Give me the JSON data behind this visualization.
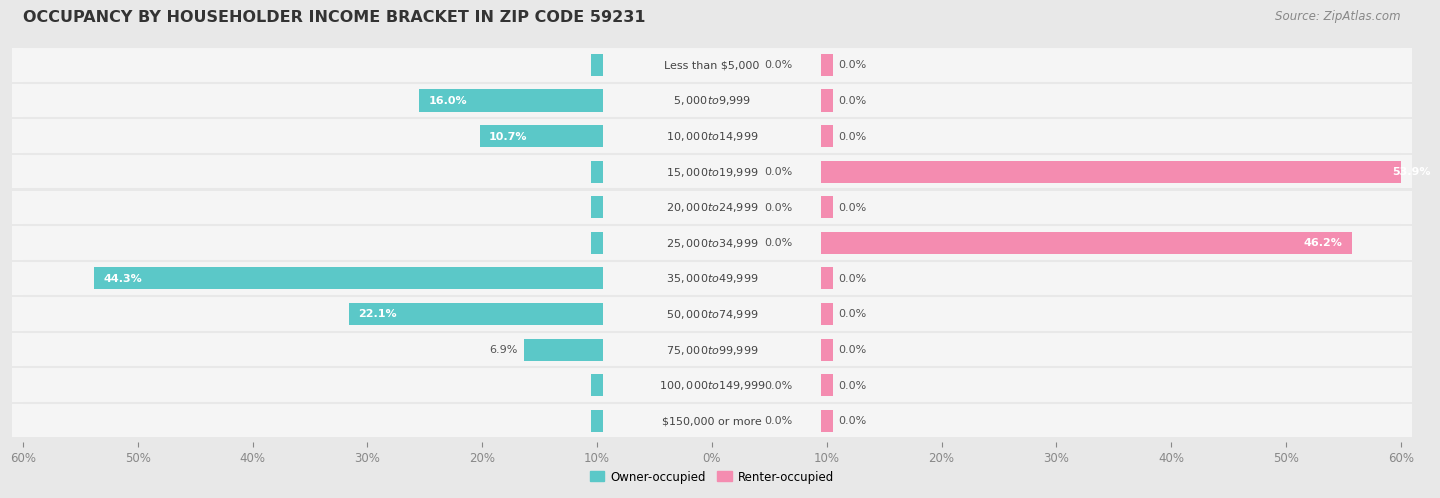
{
  "title": "OCCUPANCY BY HOUSEHOLDER INCOME BRACKET IN ZIP CODE 59231",
  "source": "Source: ZipAtlas.com",
  "categories": [
    "Less than $5,000",
    "$5,000 to $9,999",
    "$10,000 to $14,999",
    "$15,000 to $19,999",
    "$20,000 to $24,999",
    "$25,000 to $34,999",
    "$35,000 to $49,999",
    "$50,000 to $74,999",
    "$75,000 to $99,999",
    "$100,000 to $149,999",
    "$150,000 or more"
  ],
  "owner_values": [
    0.0,
    16.0,
    10.7,
    0.0,
    0.0,
    0.0,
    44.3,
    22.1,
    6.9,
    0.0,
    0.0
  ],
  "renter_values": [
    0.0,
    0.0,
    0.0,
    53.9,
    0.0,
    46.2,
    0.0,
    0.0,
    0.0,
    0.0,
    0.0
  ],
  "owner_color": "#5bc8c8",
  "renter_color": "#f48cb0",
  "owner_label": "Owner-occupied",
  "renter_label": "Renter-occupied",
  "xlim": 60.0,
  "background_color": "#e8e8e8",
  "bar_background": "#f5f5f5",
  "title_fontsize": 11.5,
  "source_fontsize": 8.5,
  "axis_label_fontsize": 8.5,
  "bar_height": 0.62,
  "label_fontsize": 8.0,
  "value_label_fontsize": 8.0
}
